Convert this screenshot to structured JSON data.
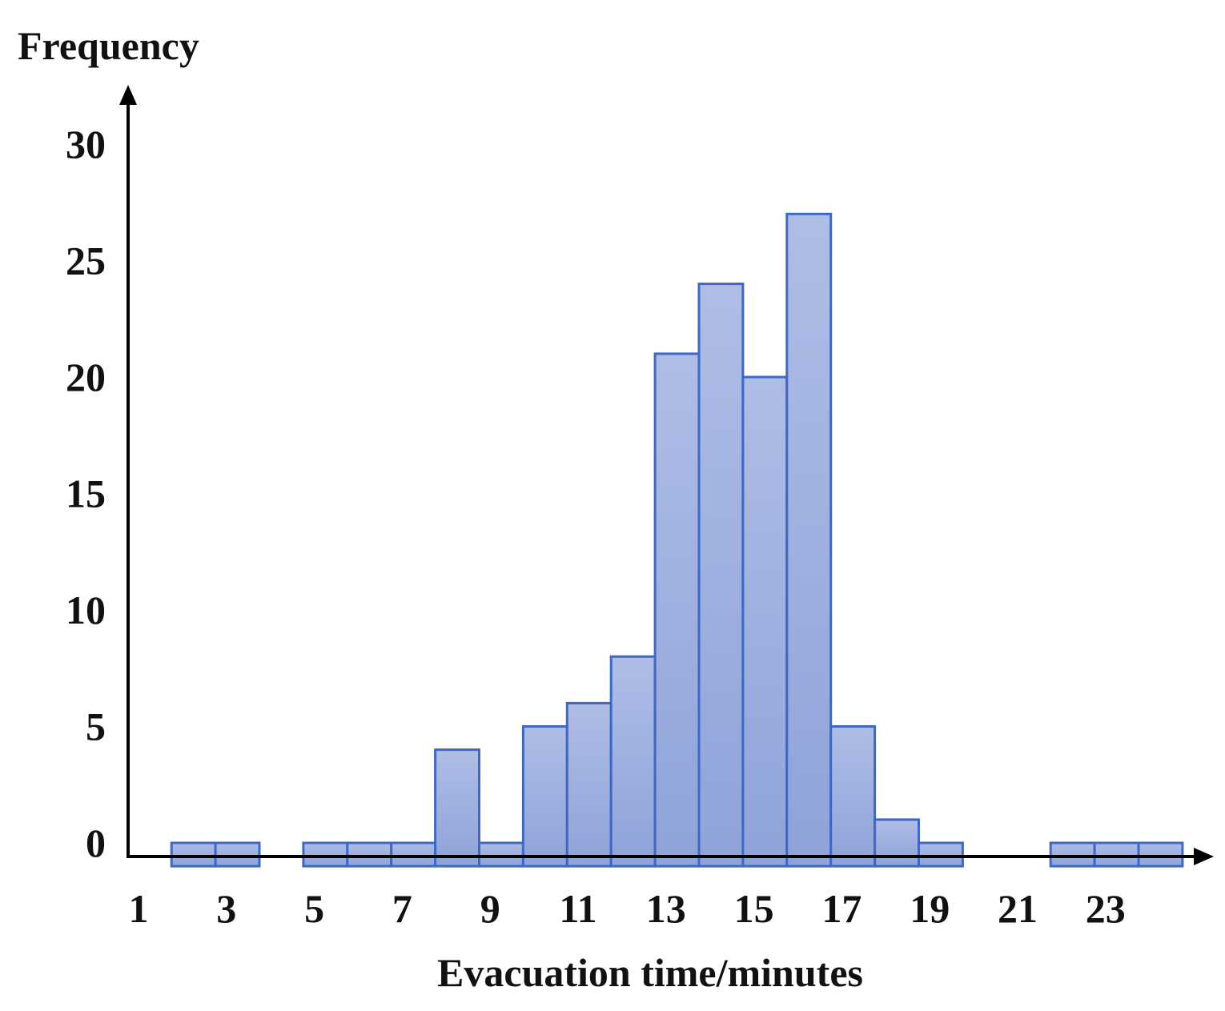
{
  "chart_data": {
    "type": "bar",
    "subtype": "histogram",
    "title": "",
    "ylabel": "Frequency",
    "xlabel": "Evacuation time/minutes",
    "ylim": [
      -1,
      30
    ],
    "xlim": [
      0.9,
      24.5
    ],
    "y_ticks": [
      0,
      5,
      10,
      15,
      20,
      25,
      30
    ],
    "x_ticks": [
      1,
      3,
      5,
      7,
      9,
      11,
      13,
      15,
      17,
      19,
      21,
      23
    ],
    "bin_width": 1,
    "bins": [
      {
        "start": 1.75,
        "value": 0
      },
      {
        "start": 2.75,
        "value": 0
      },
      {
        "start": 4.75,
        "value": 0
      },
      {
        "start": 5.75,
        "value": 0
      },
      {
        "start": 6.75,
        "value": 0
      },
      {
        "start": 7.75,
        "value": 4
      },
      {
        "start": 8.75,
        "value": 0
      },
      {
        "start": 9.75,
        "value": 5
      },
      {
        "start": 10.75,
        "value": 6
      },
      {
        "start": 11.75,
        "value": 8
      },
      {
        "start": 12.75,
        "value": 21
      },
      {
        "start": 13.75,
        "value": 24
      },
      {
        "start": 14.75,
        "value": 20
      },
      {
        "start": 15.75,
        "value": 27
      },
      {
        "start": 16.75,
        "value": 5
      },
      {
        "start": 17.75,
        "value": 1
      },
      {
        "start": 18.75,
        "value": 0
      },
      {
        "start": 21.75,
        "value": 0
      },
      {
        "start": 22.75,
        "value": 0
      },
      {
        "start": 23.75,
        "value": 0
      }
    ],
    "grid": false,
    "bar_fill": "#9fb0de",
    "bar_stroke": "#3f68c6"
  }
}
